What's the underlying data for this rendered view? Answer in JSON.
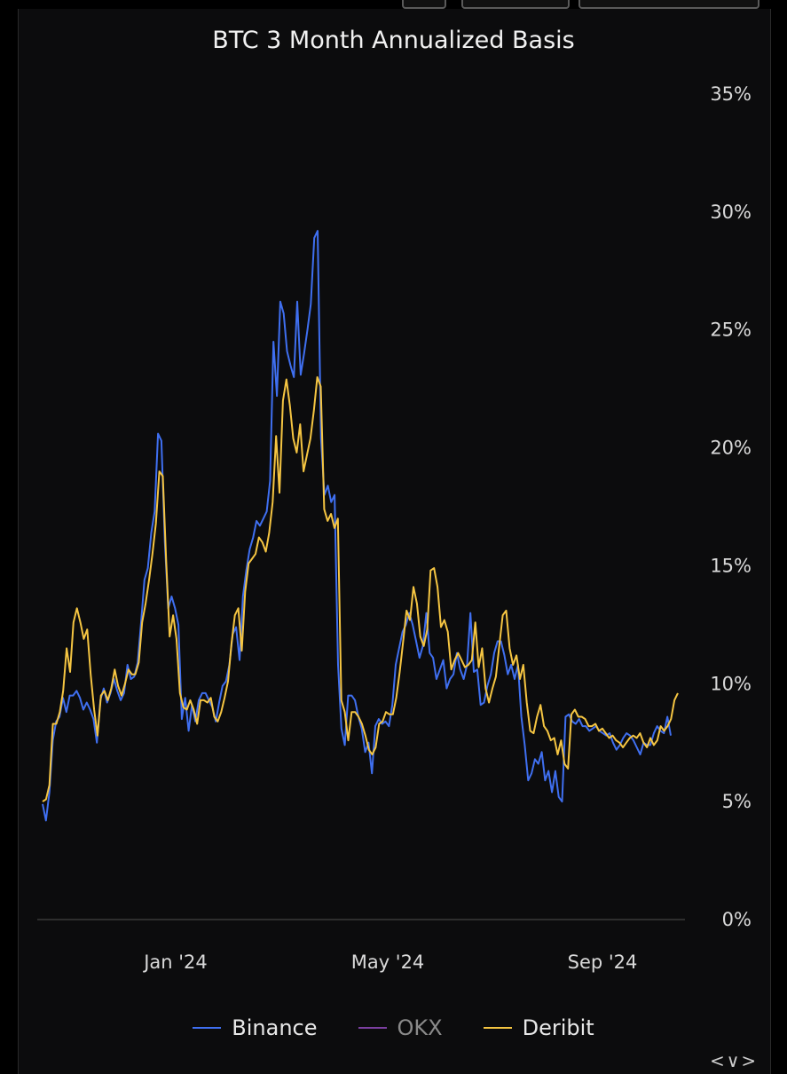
{
  "chart_data": {
    "type": "line",
    "title": "BTC 3 Month Annualized Basis",
    "x_ticks": [
      "Jan '24",
      "May '24",
      "Sep '24"
    ],
    "y_ticks": [
      "0%",
      "5%",
      "10%",
      "15%",
      "20%",
      "25%",
      "30%",
      "35%"
    ],
    "ylim": [
      0,
      35
    ],
    "grid": false,
    "legend_position": "bottom",
    "series": [
      {
        "name": "Binance",
        "color": "#3f6ff0",
        "values": [
          4.9,
          4.2,
          5.4,
          7.6,
          8.4,
          8.6,
          9.4,
          8.8,
          9.5,
          9.5,
          9.7,
          9.4,
          8.9,
          9.2,
          8.9,
          8.5,
          7.5,
          9.3,
          9.8,
          9.2,
          9.6,
          10.2,
          9.7,
          9.3,
          9.6,
          10.8,
          10.2,
          10.3,
          10.9,
          12.6,
          14.4,
          14.9,
          16.4,
          17.3,
          20.6,
          20.3,
          16.0,
          13.2,
          13.7,
          13.2,
          12.5,
          8.5,
          9.4,
          8.0,
          9.1,
          8.4,
          9.3,
          9.6,
          9.6,
          9.3,
          9.0,
          8.4,
          9.2,
          9.9,
          10.1,
          10.8,
          12.1,
          12.4,
          11.0,
          13.7,
          14.8,
          15.7,
          16.2,
          16.9,
          16.7,
          17.0,
          17.3,
          18.6,
          24.5,
          22.2,
          26.2,
          25.7,
          24.1,
          23.5,
          23.0,
          26.2,
          23.1,
          24.0,
          25.0,
          26.1,
          28.9,
          29.2,
          20.4,
          18.0,
          18.4,
          17.7,
          18.0,
          10.8,
          8.1,
          7.4,
          9.5,
          9.5,
          9.3,
          8.6,
          8.1,
          7.1,
          7.5,
          6.2,
          8.2,
          8.5,
          8.3,
          8.4,
          8.2,
          9.1,
          10.8,
          11.5,
          12.2,
          12.5,
          13.0,
          12.5,
          11.8,
          11.1,
          11.6,
          13.0,
          11.3,
          11.1,
          10.2,
          10.6,
          11.0,
          9.8,
          10.2,
          10.4,
          11.3,
          10.6,
          10.2,
          10.8,
          13.0,
          10.5,
          10.6,
          9.1,
          9.2,
          9.9,
          10.4,
          11.3,
          11.8,
          11.8,
          11.2,
          10.4,
          10.8,
          10.2,
          10.8,
          8.6,
          7.4,
          5.9,
          6.2,
          6.8,
          6.6,
          7.1,
          5.9,
          6.3,
          5.4,
          6.3,
          5.2,
          5.0,
          8.6,
          8.7,
          8.4,
          8.3,
          8.5,
          8.2,
          8.2,
          8.0,
          8.1,
          8.2,
          8.0,
          7.9,
          7.8,
          7.9,
          7.5,
          7.2,
          7.4,
          7.7,
          7.9,
          7.8,
          7.6,
          7.3,
          7.0,
          7.5,
          7.4,
          7.4,
          7.9,
          8.2,
          8.0,
          7.9,
          8.6,
          7.8
        ],
        "end_x": 756
      },
      {
        "name": "OKX",
        "color": "#7b3fa0",
        "values": []
      },
      {
        "name": "Deribit",
        "color": "#f5c542",
        "values": [
          5.0,
          5.1,
          5.7,
          8.3,
          8.3,
          8.8,
          9.7,
          11.5,
          10.5,
          12.6,
          13.2,
          12.6,
          11.9,
          12.3,
          10.4,
          8.9,
          7.8,
          9.5,
          9.7,
          9.3,
          9.8,
          10.6,
          9.9,
          9.5,
          10.0,
          10.6,
          10.4,
          10.4,
          10.9,
          12.6,
          13.4,
          14.4,
          15.5,
          16.8,
          19.0,
          18.8,
          15.2,
          12.0,
          12.9,
          11.9,
          9.6,
          9.0,
          8.9,
          9.3,
          8.9,
          8.3,
          9.3,
          9.3,
          9.2,
          9.4,
          8.6,
          8.4,
          8.8,
          9.4,
          10.1,
          11.7,
          12.9,
          13.2,
          11.4,
          13.9,
          15.1,
          15.3,
          15.5,
          16.2,
          16.0,
          15.6,
          16.4,
          17.7,
          20.5,
          18.1,
          22.0,
          22.9,
          21.8,
          20.4,
          19.8,
          21.0,
          19.0,
          19.7,
          20.4,
          21.6,
          23.0,
          22.6,
          17.4,
          16.9,
          17.2,
          16.6,
          17.0,
          9.3,
          8.8,
          7.6,
          8.8,
          8.8,
          8.6,
          8.3,
          7.8,
          7.2,
          7.0,
          7.3,
          8.3,
          8.4,
          8.8,
          8.7,
          8.7,
          9.4,
          10.5,
          11.8,
          13.1,
          12.7,
          14.1,
          13.4,
          12.0,
          11.6,
          12.3,
          14.8,
          14.9,
          14.1,
          12.4,
          12.7,
          12.2,
          10.6,
          11.0,
          11.3,
          11.0,
          10.7,
          10.8,
          11.0,
          12.6,
          10.7,
          11.5,
          9.8,
          9.2,
          9.8,
          10.3,
          11.6,
          12.9,
          13.1,
          11.5,
          10.8,
          11.2,
          10.2,
          10.8,
          9.2,
          8.0,
          7.9,
          8.6,
          9.1,
          8.2,
          8.0,
          7.6,
          7.7,
          7.0,
          7.6,
          6.6,
          6.4,
          8.7,
          8.9,
          8.6,
          8.6,
          8.5,
          8.2,
          8.2,
          8.3,
          8.0,
          8.1,
          7.9,
          7.7,
          7.8,
          7.6,
          7.5,
          7.3,
          7.5,
          7.7,
          7.8,
          7.7,
          7.9,
          7.5,
          7.3,
          7.7,
          7.4,
          7.6,
          8.2,
          8.0,
          8.2,
          8.5,
          9.3,
          9.6
        ],
        "end_x": 764
      }
    ]
  }
}
